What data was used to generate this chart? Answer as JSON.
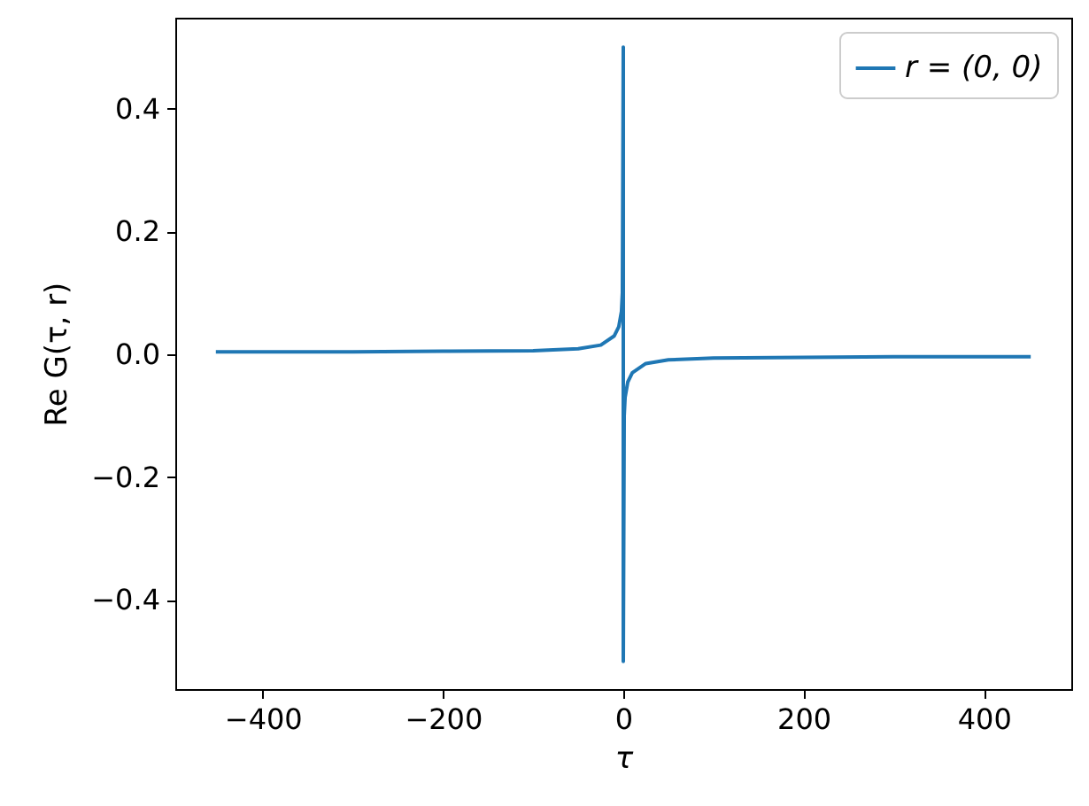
{
  "chart_data": {
    "type": "line",
    "xlabel": "τ",
    "ylabel": "Re G(τ, r)",
    "x": [
      -452,
      -300,
      -200,
      -100,
      -50,
      -25,
      -10,
      -5,
      -2,
      -1,
      0,
      0,
      1,
      2,
      5,
      10,
      25,
      50,
      100,
      200,
      300,
      452
    ],
    "series": [
      {
        "name": "r = (0, 0)",
        "color": "#1f77b4",
        "values": [
          0.004,
          0.004,
          0.005,
          0.006,
          0.009,
          0.015,
          0.03,
          0.045,
          0.07,
          0.1,
          0.5,
          -0.5,
          -0.1,
          -0.07,
          -0.045,
          -0.03,
          -0.015,
          -0.009,
          -0.006,
          -0.005,
          -0.004,
          -0.004
        ]
      }
    ],
    "xlim": [
      -497,
      497
    ],
    "xticks": [
      -400,
      -200,
      0,
      200,
      400
    ],
    "ylim": [
      -0.545,
      0.548
    ],
    "yticks": [
      -0.4,
      -0.2,
      {
        "value": 0,
        "label": "0.0"
      },
      0.2,
      0.4
    ],
    "grid": false,
    "legend": "top right",
    "marker": "none",
    "line_style": "solid"
  }
}
